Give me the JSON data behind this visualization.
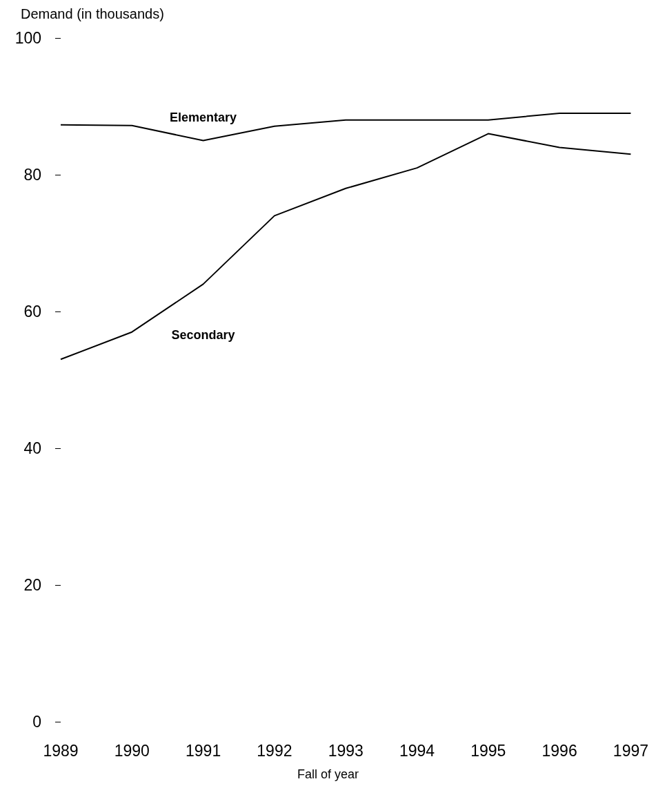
{
  "chart_data": {
    "type": "line",
    "ylabel": "Demand (in thousands)",
    "xlabel": "Fall of year",
    "x": [
      1989,
      1990,
      1991,
      1992,
      1993,
      1994,
      1995,
      1996,
      1997
    ],
    "xlim": [
      1989,
      1997
    ],
    "xticks": [
      1989,
      1990,
      1991,
      1992,
      1993,
      1994,
      1995,
      1996,
      1997
    ],
    "ylim": [
      0,
      100
    ],
    "yticks": [
      0,
      20,
      40,
      60,
      80,
      100
    ],
    "grid": false,
    "legend": false,
    "marker": "none",
    "line_style": "solid",
    "series": [
      {
        "name": "Elementary",
        "color": "#000000",
        "values": [
          87.3,
          87.2,
          85,
          87.1,
          88,
          88,
          88,
          89,
          89
        ]
      },
      {
        "name": "Secondary",
        "color": "#000000",
        "values": [
          53,
          57,
          64,
          74,
          78,
          81,
          86,
          84,
          83
        ]
      }
    ]
  }
}
